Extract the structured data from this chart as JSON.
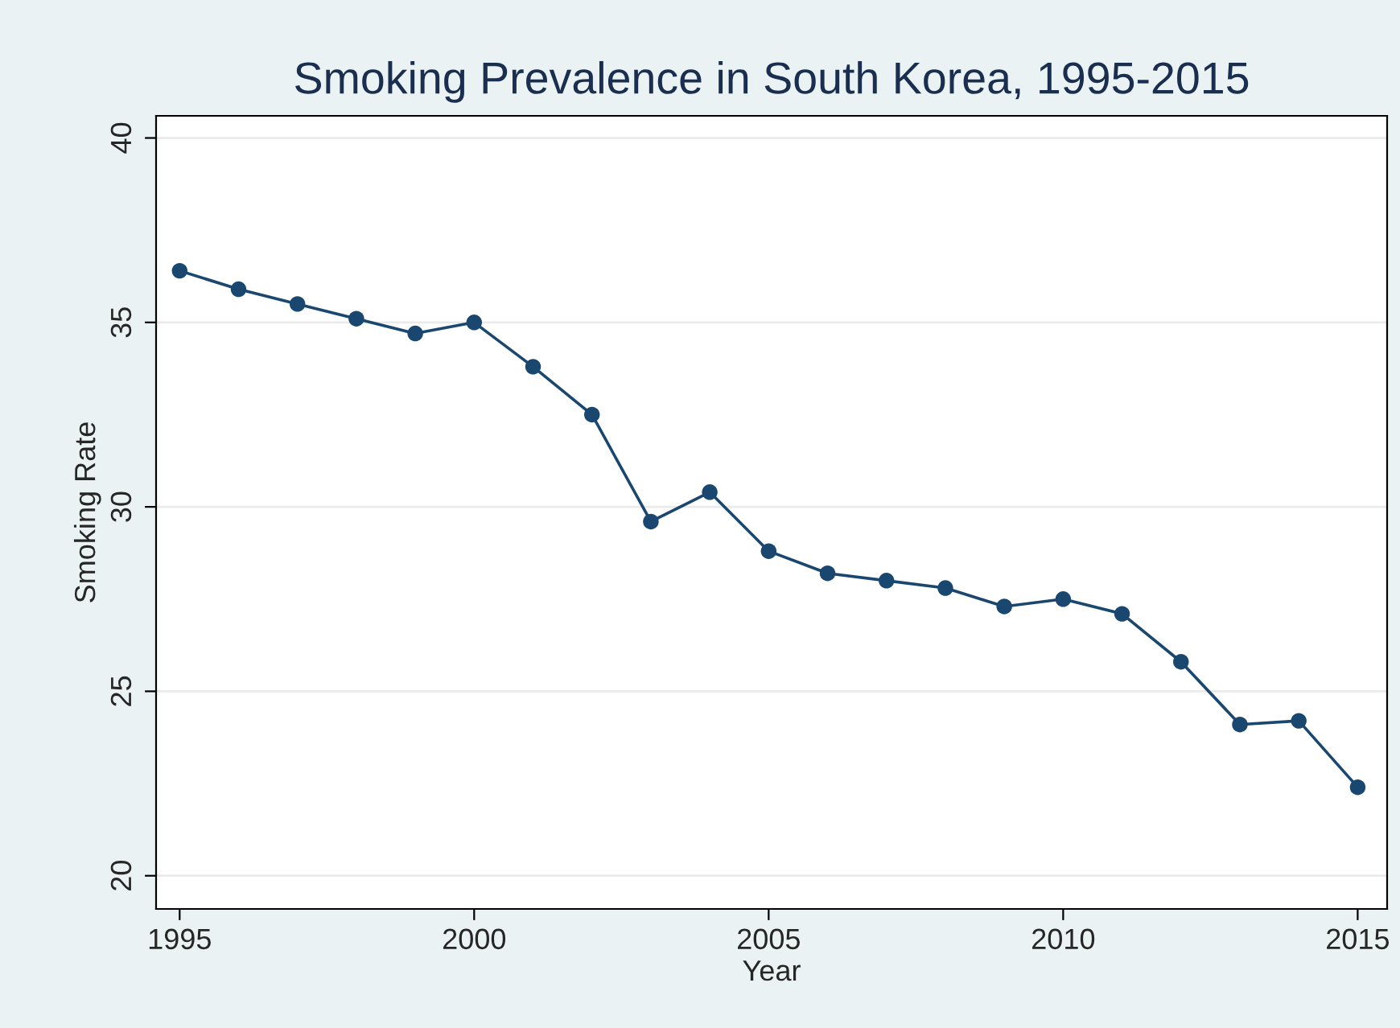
{
  "chart_data": {
    "type": "line",
    "title": "Smoking Prevalence in South Korea, 1995-2015",
    "xlabel": "Year",
    "ylabel": "Smoking Rate",
    "x": [
      1995,
      1996,
      1997,
      1998,
      1999,
      2000,
      2001,
      2002,
      2003,
      2004,
      2005,
      2006,
      2007,
      2008,
      2009,
      2010,
      2011,
      2012,
      2013,
      2014,
      2015
    ],
    "series": [
      {
        "color": "#1a476f",
        "values": [
          36.4,
          35.9,
          35.5,
          35.1,
          34.7,
          35.0,
          33.8,
          32.5,
          29.6,
          30.4,
          28.8,
          28.2,
          28.0,
          27.8,
          27.3,
          27.5,
          27.1,
          25.8,
          24.1,
          24.2,
          22.4
        ]
      }
    ],
    "xlim": [
      1994.6,
      2015.5
    ],
    "ylim": [
      19.1,
      40.6
    ],
    "xticks": [
      1995,
      2000,
      2005,
      2010,
      2015
    ],
    "yticks": [
      20,
      25,
      30,
      35,
      40
    ],
    "grid": "y",
    "marker": "circle",
    "line_style": "solid"
  }
}
